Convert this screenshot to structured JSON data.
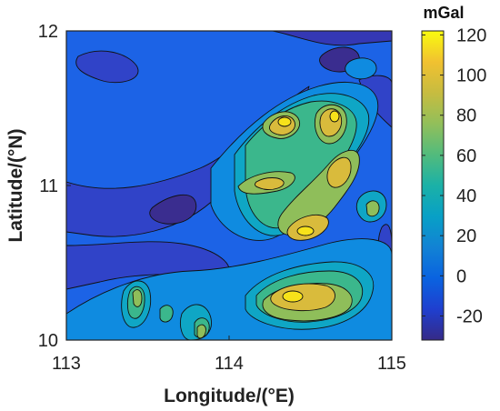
{
  "chart_data": {
    "type": "heatmap",
    "xlabel": "Longitude/(°E)",
    "ylabel": "Latitude/(°N)",
    "x_ticks": [
      "113",
      "114",
      "115"
    ],
    "y_ticks": [
      "10",
      "11",
      "12"
    ],
    "xlim": [
      113,
      115
    ],
    "ylim": [
      10,
      12
    ],
    "colorbar": {
      "unit": "mGal",
      "ticks": [
        "120",
        "100",
        "80",
        "60",
        "40",
        "20",
        "0",
        "-20"
      ],
      "tick_values": [
        120,
        100,
        80,
        60,
        40,
        20,
        0,
        -20
      ],
      "range": [
        -32,
        122
      ],
      "colormap": "parula"
    },
    "grid": false,
    "field_level": [
      {
        "lon": 113.4,
        "lat": 11.45,
        "value": 5
      },
      {
        "lon": 114.35,
        "lat": 11.42,
        "value": 110
      },
      {
        "lon": 114.67,
        "lat": 11.45,
        "value": 105
      },
      {
        "lon": 114.72,
        "lat": 11.08,
        "value": 95
      },
      {
        "lon": 114.47,
        "lat": 10.7,
        "value": 100
      },
      {
        "lon": 114.25,
        "lat": 11.05,
        "value": 75
      },
      {
        "lon": 114.88,
        "lat": 10.83,
        "value": 70
      },
      {
        "lon": 114.45,
        "lat": 10.25,
        "value": 110
      },
      {
        "lon": 113.47,
        "lat": 10.3,
        "value": 75
      },
      {
        "lon": 113.88,
        "lat": 10.05,
        "value": 95
      },
      {
        "lon": 113.65,
        "lat": 10.18,
        "value": 55
      },
      {
        "lon": 114.95,
        "lat": 11.5,
        "value": -20
      },
      {
        "lon": 113.62,
        "lat": 10.88,
        "value": -25
      }
    ]
  }
}
